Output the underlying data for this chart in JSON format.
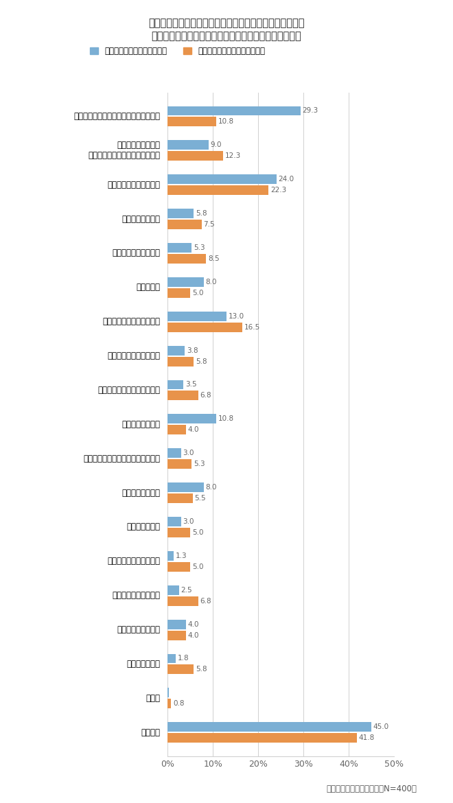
{
  "title_line1": "長時間労働を減らすために、あなたの会社で行っている／",
  "title_line2": "行ってほしい取り組みをお選びください。（複数回答）",
  "legend_blue": "すでに実施している取り組み",
  "legend_orange": "今後、実施してほしい取り組み",
  "footnote": "マンパワーグループ調べ（N=400）",
  "categories": [
    "ノー残業デーやノー残業ウィークの設置",
    "業務の繁閑に応じた\n営業時間・営業日・休業日の設定",
    "年次有給休暇取得の促進",
    "裁量労働制の導入",
    "変形労働時間制の導入",
    "交代勤務制",
    "フレックスタイム制の導入",
    "みなし労働時間制の導入",
    "従業員間の労働時間の平準化",
    "残業の事前申請制",
    "時間管理を評価する人事制度の導入",
    "従業員向けの教育",
    "ＩＴ環境の改善",
    "余裕を持った納期の設定",
    "業務プロセスの見直し",
    "決まった時間に消灯",
    "残業時間の公開",
    "その他",
    "特にない"
  ],
  "blue_values": [
    29.3,
    9.0,
    24.0,
    5.8,
    5.3,
    8.0,
    13.0,
    3.8,
    3.5,
    10.8,
    3.0,
    8.0,
    3.0,
    1.3,
    2.5,
    4.0,
    1.8,
    0.3,
    45.0
  ],
  "orange_values": [
    10.8,
    12.3,
    22.3,
    7.5,
    8.5,
    5.0,
    16.5,
    5.8,
    6.8,
    4.0,
    5.3,
    5.5,
    5.0,
    5.0,
    6.8,
    4.0,
    5.8,
    0.8,
    41.8
  ],
  "blue_show_label": [
    true,
    true,
    true,
    true,
    true,
    true,
    true,
    true,
    true,
    true,
    true,
    true,
    true,
    true,
    true,
    true,
    true,
    false,
    true
  ],
  "blue_color": "#7bafd4",
  "orange_color": "#e8934a",
  "xlim": [
    0,
    50
  ],
  "xticks": [
    0,
    10,
    20,
    30,
    40,
    50
  ],
  "xticklabels": [
    "0%",
    "10%",
    "20%",
    "30%",
    "40%",
    "50%"
  ],
  "background_color": "#ffffff",
  "bar_height": 0.28,
  "bar_gap": 0.04
}
